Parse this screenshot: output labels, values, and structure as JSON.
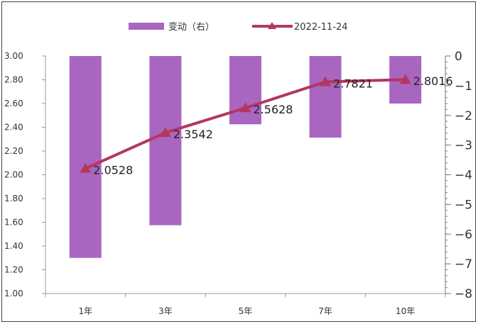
{
  "chart_data": {
    "type": "bar+line",
    "categories": [
      "1年",
      "3年",
      "5年",
      "7年",
      "10年"
    ],
    "series": [
      {
        "name": "变动（右）",
        "type": "bar",
        "axis": "right",
        "values": [
          -6.8,
          -5.7,
          -2.3,
          -2.75,
          -1.6
        ],
        "color": "#a966c0"
      },
      {
        "name": "2022-11-24",
        "type": "line",
        "axis": "left",
        "values": [
          2.0528,
          2.3542,
          2.5628,
          2.7821,
          2.8016
        ],
        "labels": [
          "2.0528",
          "2.3542",
          "2.5628",
          "2.7821",
          "2.8016"
        ],
        "color": "#b3375f",
        "marker": "triangle"
      }
    ],
    "y_left": {
      "ylim": [
        1.0,
        3.0
      ],
      "ticks": [
        "1.00",
        "1.20",
        "1.40",
        "1.60",
        "1.80",
        "2.00",
        "2.20",
        "2.40",
        "2.60",
        "2.80",
        "3.00"
      ]
    },
    "y_right": {
      "ylim": [
        -8,
        0
      ],
      "ticks": [
        "0",
        "-1",
        "-2",
        "-3",
        "-4",
        "-5",
        "-6",
        "-7",
        "-8"
      ]
    },
    "legend": {
      "position": "top-center",
      "bar_label": "变动（右）",
      "line_label": "2022-11-24"
    },
    "grid": false
  }
}
